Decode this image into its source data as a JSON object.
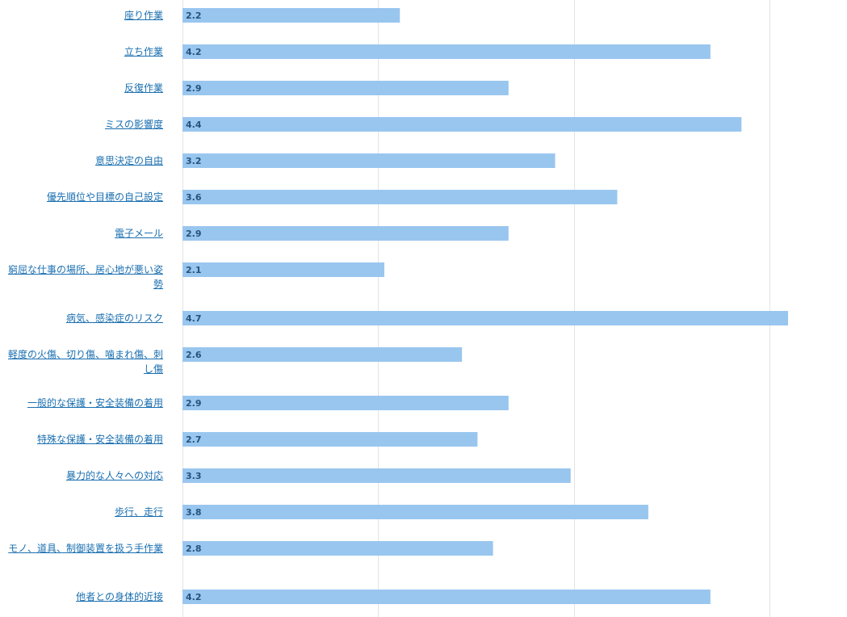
{
  "chart_data": {
    "type": "bar",
    "orientation": "horizontal",
    "categories": [
      "座り作業",
      "立ち作業",
      "反復作業",
      "ミスの影響度",
      "意思決定の自由",
      "優先順位や目標の自己設定",
      "電子メール",
      "窮屈な仕事の場所、居心地が悪い姿勢",
      "病気、感染症のリスク",
      "軽度の火傷、切り傷、噛まれ傷、刺し傷",
      "一般的な保護・安全装備の着用",
      "特殊な保護・安全装備の着用",
      "暴力的な人々への対応",
      "歩行、走行",
      "モノ、道具、制御装置を扱う手作業",
      "他者との身体的近接"
    ],
    "values": [
      2.2,
      4.2,
      2.9,
      4.4,
      3.2,
      3.6,
      2.9,
      2.1,
      4.7,
      2.6,
      2.9,
      2.7,
      3.3,
      3.8,
      2.8,
      4.2
    ],
    "value_labels": [
      "2.2",
      "4.2",
      "2.9",
      "4.4",
      "3.2",
      "3.6",
      "2.9",
      "2.1",
      "4.7",
      "2.6",
      "2.9",
      "2.7",
      "3.3",
      "3.8",
      "2.8",
      "4.2"
    ],
    "xlim": [
      0.8,
      5
    ],
    "grid": true,
    "gridlines": [
      0.8,
      2.06,
      3.32,
      4.58,
      5.84
    ],
    "tick_labels_shown": false,
    "colors": {
      "bar": "#99c6ef",
      "bar_label": "#23537f",
      "category_label": "#1a6fb0",
      "grid": "#e3e3e3"
    }
  }
}
